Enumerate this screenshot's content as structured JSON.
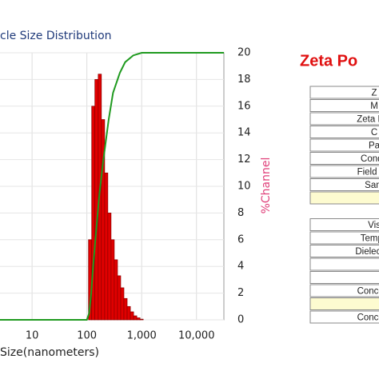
{
  "chart_data": {
    "type": "histogram",
    "title": "cle Size Distribution",
    "xlabel": "Size(nanometers)",
    "y2label": "%Channel",
    "log_x": true,
    "grid": true,
    "xlim": [
      2.6,
      31600
    ],
    "xticks": [
      10,
      100,
      {
        "value": 1000,
        "label": "1,000"
      },
      {
        "value": 10000,
        "label": "10,000"
      }
    ],
    "y2lim": [
      0,
      20
    ],
    "y2ticks": [
      0,
      2,
      4,
      6,
      8,
      10,
      12,
      14,
      16,
      18,
      20
    ],
    "bins": [
      107,
      122.5,
      140,
      161,
      184,
      211,
      241,
      276,
      316,
      362,
      414,
      474,
      543,
      622,
      712,
      815,
      933,
      1068
    ],
    "values": [
      6,
      16,
      18,
      18.4,
      15,
      11,
      8,
      6,
      4.5,
      3.3,
      2.4,
      1.6,
      1.0,
      0.6,
      0.3,
      0.15,
      0.05
    ],
    "color": "#e00000",
    "line": {
      "x": [
        2.6,
        100,
        110,
        120,
        130,
        150,
        170,
        200,
        250,
        300,
        400,
        500,
        700,
        1000,
        31600
      ],
      "values": [
        0,
        0,
        0.5,
        2,
        4,
        7,
        9.5,
        12,
        15,
        17,
        18.5,
        19.3,
        19.8,
        20,
        20
      ],
      "color": "#1f9a1f"
    }
  },
  "table": {
    "title": "Zeta Po",
    "rows": [
      "Z",
      "M",
      "Zeta Pot",
      "C",
      "Pa",
      "Condu",
      "Field Str",
      "Sam",
      "Vis",
      "Tempe",
      "Dielectric",
      "Concent",
      "Concent"
    ]
  }
}
